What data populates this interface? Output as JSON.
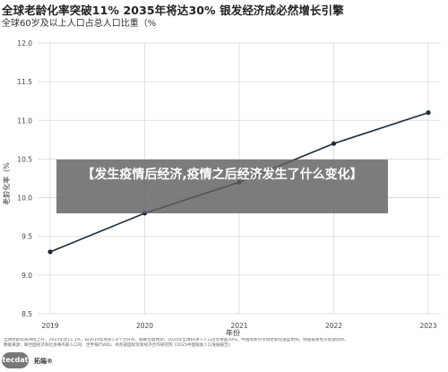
{
  "headline": "全球老龄化率突破11% 2035年将达30% 银发经济成必然增长引擎",
  "overlay_text": "【发生疫情后经济,疫情之后经济发生了什么变化】",
  "footnote_lines": [
    "全球老龄化率持续上升，2023年达11.1%，较2019年增长1.8个百分点。据联合国预测，2035年全球60岁+人口占比将超30%。中国等新兴市场老龄化速度更快，倒逼银发经济加速创新。",
    "数据来源：联合国经济和社会事务部人口司、世界银行WDI、商务部国际贸易经济合作研究院《2025中国银发人口发展报告》"
  ],
  "logo": {
    "badge_text": "tecdat",
    "brand_text": "拓端®"
  },
  "chart_data": {
    "type": "line",
    "title": "全球60岁及以上人口占总人口比重（%",
    "xlabel": "年份",
    "ylabel": "老龄化率（%",
    "x": [
      2019,
      2020,
      2021,
      2022,
      2023
    ],
    "series": [
      {
        "values": [
          9.3,
          9.8,
          10.2,
          10.7,
          11.1
        ],
        "color": "#1c2b3a"
      }
    ],
    "xlim": [
      2019,
      2023
    ],
    "ylim": [
      8.5,
      12.0
    ],
    "yticks": [
      8.5,
      9.0,
      9.5,
      10.0,
      10.5,
      11.0,
      11.5,
      12.0
    ],
    "ytick_labels": [
      "8.5",
      "9.0",
      "9.5",
      "10.0",
      "10.5",
      "11.0",
      "11.5",
      "12.0"
    ],
    "xtick_labels": [
      "2019",
      "2020",
      "2021",
      "2022",
      "2023"
    ],
    "grid": true
  }
}
